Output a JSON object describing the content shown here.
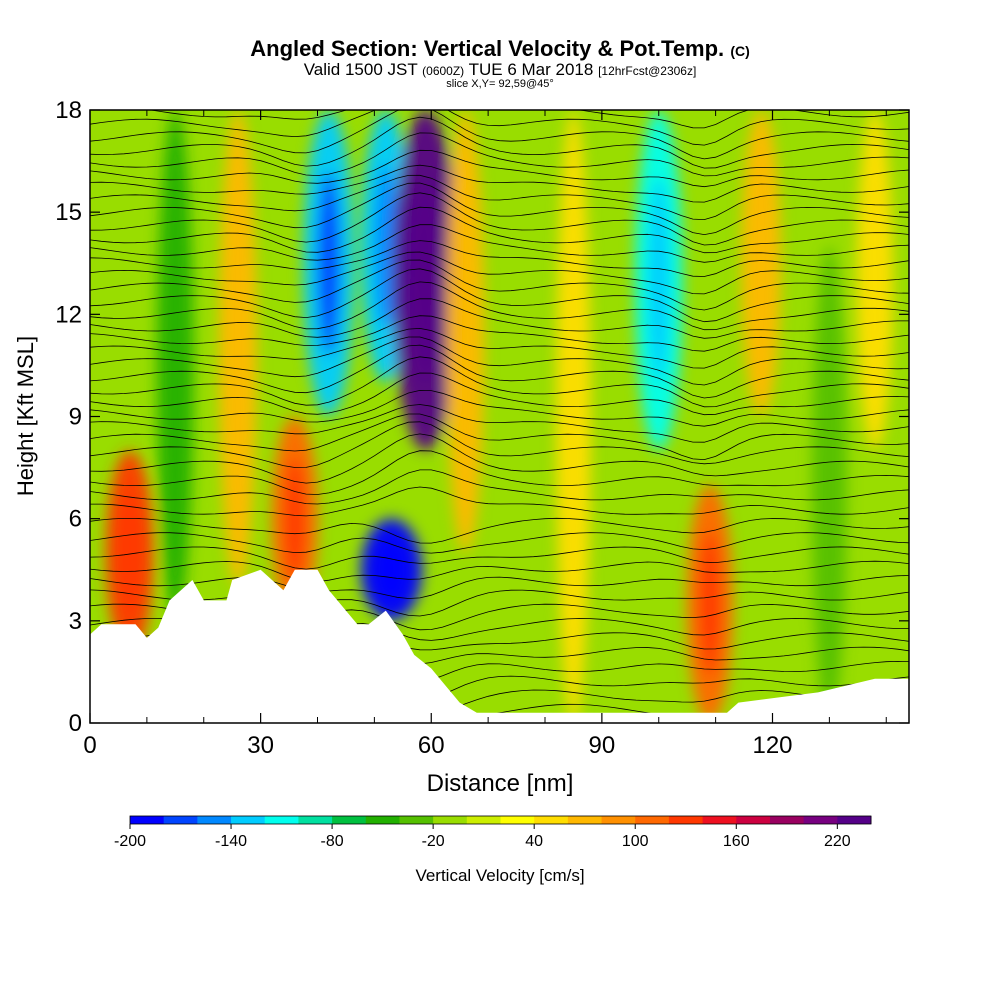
{
  "title": {
    "main": "Angled Section: Vertical Velocity & Pot.Temp.",
    "copyright": "(C)",
    "valid": "Valid 1500 JST",
    "zulu": "(0600Z)",
    "date": "TUE 6 Mar 2018",
    "forecast": "[12hrFcst@2306z]",
    "slice": "slice X,Y= 92,59@45°"
  },
  "colorbar": {
    "label": "Vertical Velocity [cm/s]",
    "tick_labels": [
      "-200",
      "-140",
      "-80",
      "-20",
      "40",
      "100",
      "160",
      "220"
    ],
    "colors": [
      "#0000ff",
      "#0044ff",
      "#0088ff",
      "#00ccff",
      "#00ffee",
      "#00e0a0",
      "#00c040",
      "#22b000",
      "#55c000",
      "#99dd00",
      "#ccee00",
      "#ffff00",
      "#ffdd00",
      "#ffb800",
      "#ff9000",
      "#ff6800",
      "#ff3800",
      "#ee1020",
      "#cc0040",
      "#990060",
      "#770080",
      "#550088"
    ]
  },
  "chart_data": {
    "type": "heatmap",
    "xlabel": "Distance [nm]",
    "ylabel": "Height [Kft MSL]",
    "xlim": [
      0,
      144
    ],
    "ylim": [
      0,
      18
    ],
    "x_ticks": [
      "0",
      "30",
      "60",
      "90",
      "120"
    ],
    "y_ticks": [
      "0",
      "3",
      "6",
      "9",
      "12",
      "15",
      "18"
    ],
    "velocity_range_cm_s": [
      -200,
      240
    ],
    "features": [
      {
        "x": 7,
        "ymin": 2,
        "ymax": 8,
        "w_cm_s": 120
      },
      {
        "x": 15,
        "ymin": 3,
        "ymax": 18,
        "w_cm_s": -50
      },
      {
        "x": 26,
        "ymin": 4,
        "ymax": 18,
        "w_cm_s": 60
      },
      {
        "x": 36,
        "ymin": 3,
        "ymax": 9,
        "w_cm_s": 110
      },
      {
        "x": 42,
        "ymin": 9,
        "ymax": 18,
        "w_cm_s": -140
      },
      {
        "x": 53,
        "ymin": 3,
        "ymax": 6,
        "w_cm_s": -200
      },
      {
        "x": 52,
        "ymin": 10,
        "ymax": 18,
        "w_cm_s": -130
      },
      {
        "x": 59,
        "ymin": 8,
        "ymax": 18,
        "w_cm_s": 230
      },
      {
        "x": 66,
        "ymin": 5,
        "ymax": 18,
        "w_cm_s": 60
      },
      {
        "x": 85,
        "ymin": 0,
        "ymax": 18,
        "w_cm_s": 40
      },
      {
        "x": 100,
        "ymin": 8,
        "ymax": 18,
        "w_cm_s": -120
      },
      {
        "x": 109,
        "ymin": 0,
        "ymax": 7,
        "w_cm_s": 110
      },
      {
        "x": 118,
        "ymin": 9,
        "ymax": 18,
        "w_cm_s": 70
      },
      {
        "x": 130,
        "ymin": 0,
        "ymax": 14,
        "w_cm_s": -40
      },
      {
        "x": 138,
        "ymin": 8,
        "ymax": 18,
        "w_cm_s": 50
      }
    ],
    "terrain_kft": [
      [
        0,
        2.6
      ],
      [
        2,
        2.9
      ],
      [
        8,
        2.9
      ],
      [
        10,
        2.5
      ],
      [
        12,
        2.8
      ],
      [
        14,
        3.6
      ],
      [
        18,
        4.2
      ],
      [
        20,
        3.6
      ],
      [
        24,
        3.6
      ],
      [
        25,
        4.2
      ],
      [
        30,
        4.5
      ],
      [
        32,
        4.2
      ],
      [
        34,
        3.9
      ],
      [
        36,
        4.5
      ],
      [
        40,
        4.5
      ],
      [
        42,
        3.9
      ],
      [
        45,
        3.3
      ],
      [
        47,
        2.9
      ],
      [
        49,
        2.9
      ],
      [
        52,
        3.3
      ],
      [
        55,
        2.6
      ],
      [
        57,
        2.0
      ],
      [
        60,
        1.6
      ],
      [
        62,
        1.2
      ],
      [
        65,
        0.6
      ],
      [
        68,
        0.3
      ],
      [
        112,
        0.3
      ],
      [
        114,
        0.6
      ],
      [
        128,
        0.9
      ],
      [
        138,
        1.3
      ],
      [
        144,
        1.3
      ]
    ]
  }
}
